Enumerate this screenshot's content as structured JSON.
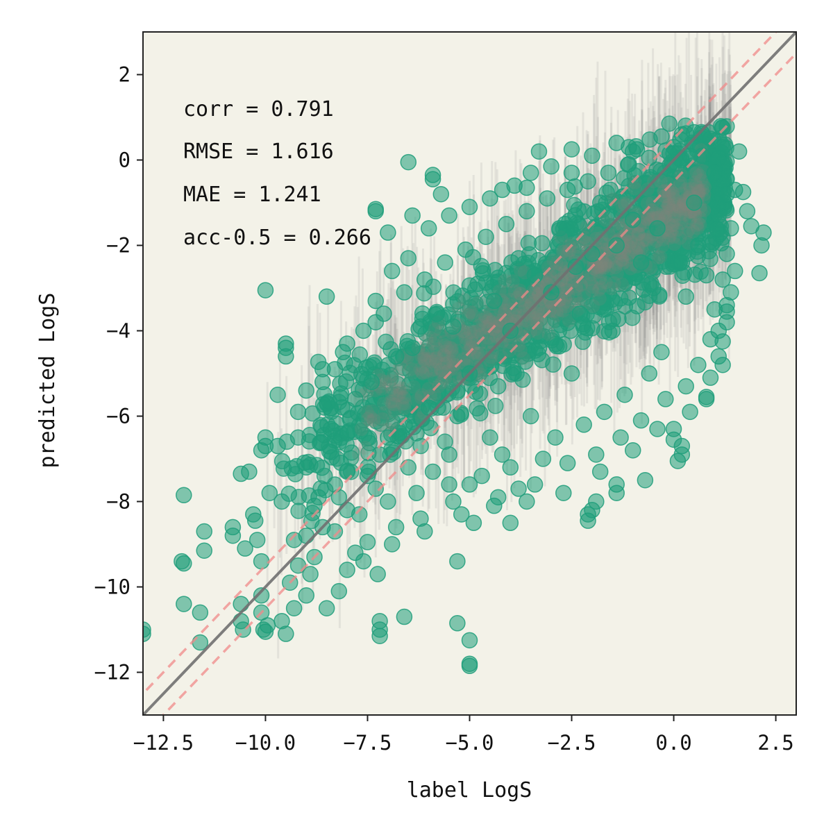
{
  "chart_data": {
    "type": "scatter",
    "title": "",
    "xlabel": "label LogS",
    "ylabel": "predicted LogS",
    "xlim": [
      -13,
      3
    ],
    "ylim": [
      -13,
      3
    ],
    "x_ticks": [
      -12.5,
      -10.0,
      -7.5,
      -5.0,
      -2.5,
      0.0,
      2.5
    ],
    "x_tick_labels": [
      "−12.5",
      "−10.0",
      "−7.5",
      "−5.0",
      "−2.5",
      "0.0",
      "2.5"
    ],
    "y_ticks": [
      2,
      0,
      -2,
      -4,
      -6,
      -8,
      -10,
      -12
    ],
    "y_tick_labels": [
      "2",
      "0",
      "−2",
      "−4",
      "−6",
      "−8",
      "−10",
      "−12"
    ],
    "grid": false,
    "colors": {
      "points": "#1f9e7a",
      "error_bars": "#888888",
      "identity_line": "#707070",
      "tolerance_lines": "#f08a8a",
      "plot_background": "#f3f2e8"
    },
    "reference_lines": [
      {
        "kind": "identity",
        "slope": 1,
        "offset": 0,
        "style": "solid"
      },
      {
        "kind": "tolerance",
        "slope": 1,
        "offset": 0.5,
        "style": "dashed"
      },
      {
        "kind": "tolerance",
        "slope": 1,
        "offset": -0.5,
        "style": "dashed"
      }
    ],
    "stats": [
      "corr = 0.791",
      "RMSE = 1.616",
      "MAE = 1.241",
      "acc-0.5 = 0.266"
    ],
    "series": [
      {
        "points": [
          [
            -12.0,
            -7.85
          ],
          [
            -11.5,
            -8.7
          ],
          [
            -11.5,
            -9.15
          ],
          [
            -10.8,
            -8.6
          ],
          [
            -10.8,
            -8.8
          ],
          [
            -10.5,
            -9.1
          ],
          [
            -10.3,
            -8.3
          ],
          [
            -10.25,
            -8.45
          ],
          [
            -10.2,
            -8.9
          ],
          [
            -10.1,
            -9.4
          ],
          [
            -12.0,
            -9.45
          ],
          [
            -12.05,
            -9.4
          ],
          [
            -12.0,
            -10.4
          ],
          [
            -11.6,
            -10.6
          ],
          [
            -11.6,
            -11.3
          ],
          [
            -13.0,
            -11.0
          ],
          [
            -13.0,
            -11.1
          ],
          [
            -10.6,
            -10.4
          ],
          [
            -10.6,
            -10.8
          ],
          [
            -10.55,
            -11.0
          ],
          [
            -10.1,
            -10.2
          ],
          [
            -10.1,
            -10.6
          ],
          [
            -10.05,
            -11.0
          ],
          [
            -10.0,
            -11.05
          ],
          [
            -9.95,
            -10.9
          ],
          [
            -9.5,
            -11.1
          ],
          [
            -9.6,
            -10.8
          ],
          [
            -9.3,
            -10.5
          ],
          [
            -9.0,
            -10.2
          ],
          [
            -8.5,
            -10.5
          ],
          [
            -7.2,
            -10.8
          ],
          [
            -7.2,
            -11.0
          ],
          [
            -7.2,
            -11.15
          ],
          [
            -6.6,
            -10.7
          ],
          [
            -5.3,
            -10.85
          ],
          [
            -5.0,
            -11.25
          ],
          [
            -5.0,
            -11.8
          ],
          [
            -5.0,
            -11.85
          ],
          [
            -5.3,
            -9.4
          ],
          [
            -4.0,
            -8.5
          ],
          [
            -4.9,
            -8.5
          ],
          [
            -7.25,
            -9.7
          ],
          [
            -6.2,
            -3.9
          ],
          [
            -8.5,
            -3.2
          ],
          [
            -6.5,
            -0.05
          ],
          [
            -5.9,
            -0.35
          ],
          [
            -5.9,
            -0.45
          ],
          [
            -5.7,
            -0.8
          ],
          [
            -7.3,
            -1.2
          ],
          [
            -7.3,
            -1.15
          ],
          [
            -7.0,
            -1.7
          ],
          [
            -10.0,
            -3.05
          ],
          [
            -9.5,
            -4.3
          ],
          [
            -9.5,
            -4.4
          ],
          [
            -9.5,
            -4.6
          ],
          [
            -9.7,
            -5.5
          ],
          [
            -10.0,
            -6.5
          ],
          [
            -10.0,
            -6.7
          ],
          [
            -10.1,
            -6.8
          ],
          [
            -10.6,
            -7.35
          ],
          [
            -10.4,
            -7.3
          ],
          [
            -9.7,
            -6.7
          ],
          [
            -9.9,
            -7.8
          ],
          [
            -9.6,
            -8.0
          ],
          [
            -9.2,
            -9.5
          ],
          [
            -3.3,
            0.2
          ],
          [
            -2.5,
            0.25
          ],
          [
            -1.4,
            0.4
          ],
          [
            -1.1,
            0.3
          ],
          [
            -0.9,
            0.25
          ],
          [
            -0.3,
            0.55
          ],
          [
            0.2,
            0.6
          ],
          [
            0.5,
            0.65
          ],
          [
            0.9,
            0.5
          ],
          [
            1.2,
            0.3
          ],
          [
            1.6,
            0.2
          ],
          [
            1.1,
            0.05
          ],
          [
            -4.2,
            -0.7
          ],
          [
            -3.6,
            -0.65
          ],
          [
            -2.5,
            -0.3
          ],
          [
            1.5,
            -0.7
          ],
          [
            1.7,
            -0.75
          ],
          [
            1.8,
            -1.2
          ],
          [
            1.9,
            -1.55
          ],
          [
            2.2,
            -1.7
          ],
          [
            2.15,
            -2.0
          ],
          [
            2.1,
            -2.65
          ],
          [
            1.5,
            -2.6
          ],
          [
            1.4,
            -3.1
          ],
          [
            1.3,
            -3.4
          ],
          [
            1.3,
            -3.55
          ],
          [
            1.3,
            -3.8
          ],
          [
            1.2,
            -4.25
          ],
          [
            1.1,
            -4.6
          ],
          [
            1.2,
            -4.8
          ],
          [
            0.8,
            -5.55
          ],
          [
            0.8,
            -5.6
          ],
          [
            0.0,
            -6.3
          ],
          [
            0.0,
            -6.55
          ],
          [
            0.2,
            -6.7
          ],
          [
            0.2,
            -6.9
          ],
          [
            0.1,
            -7.05
          ],
          [
            -0.7,
            -7.5
          ],
          [
            -1.4,
            -7.6
          ],
          [
            -1.4,
            -7.8
          ],
          [
            -1.9,
            -8.0
          ],
          [
            -2.0,
            -8.2
          ],
          [
            -2.1,
            -8.45
          ],
          [
            -2.1,
            -8.3
          ],
          [
            -3.4,
            -7.6
          ],
          [
            -3.8,
            -7.7
          ],
          [
            -4.3,
            -7.9
          ],
          [
            -5.0,
            -7.6
          ],
          [
            -5.4,
            -8.0
          ],
          [
            -6.2,
            -8.4
          ],
          [
            -6.8,
            -8.6
          ],
          [
            -7.5,
            -8.95
          ],
          [
            -8.0,
            -9.6
          ],
          [
            -7.8,
            -9.2
          ],
          [
            -8.8,
            -9.3
          ],
          [
            -9.4,
            -9.9
          ],
          [
            -9.0,
            -8.8
          ],
          [
            -8.6,
            -8.6
          ],
          [
            -8.0,
            -8.2
          ],
          [
            -7.5,
            -7.4
          ],
          [
            -8.6,
            -5.2
          ],
          [
            -8.3,
            -4.9
          ],
          [
            -8.0,
            -4.3
          ],
          [
            -7.3,
            -3.8
          ],
          [
            -7.3,
            -3.3
          ],
          [
            -6.9,
            -2.6
          ],
          [
            -6.5,
            -2.3
          ],
          [
            -6.4,
            -1.3
          ],
          [
            -6.0,
            -1.6
          ],
          [
            -5.5,
            -1.3
          ],
          [
            -5.0,
            -1.1
          ],
          [
            -4.5,
            -0.9
          ],
          [
            -3.9,
            -0.6
          ],
          [
            -3.5,
            -0.3
          ],
          [
            -3.0,
            -0.15
          ],
          [
            -2.0,
            0.1
          ],
          [
            -1.0,
            0.2
          ],
          [
            0.0,
            0.3
          ],
          [
            0.7,
            0.1
          ],
          [
            1.0,
            -0.3
          ],
          [
            1.3,
            -0.8
          ],
          [
            1.4,
            -1.6
          ],
          [
            1.3,
            -2.2
          ],
          [
            1.2,
            -2.8
          ],
          [
            1.0,
            -3.5
          ],
          [
            0.9,
            -4.2
          ],
          [
            0.6,
            -4.8
          ],
          [
            0.3,
            -5.3
          ],
          [
            -0.2,
            -5.6
          ],
          [
            -0.8,
            -6.1
          ],
          [
            -1.3,
            -6.5
          ],
          [
            -1.9,
            -6.9
          ],
          [
            -2.6,
            -7.1
          ],
          [
            -3.2,
            -7.0
          ],
          [
            -4.0,
            -7.2
          ],
          [
            -4.7,
            -7.4
          ],
          [
            -5.5,
            -7.6
          ],
          [
            -6.3,
            -7.8
          ],
          [
            -7.0,
            -8.0
          ],
          [
            -7.7,
            -8.3
          ],
          [
            -8.3,
            -8.7
          ],
          [
            -8.7,
            -7.9
          ],
          [
            -9.0,
            -7.2
          ],
          [
            -9.2,
            -6.5
          ],
          [
            -9.2,
            -5.9
          ],
          [
            -9.0,
            -5.4
          ],
          [
            -8.6,
            -4.9
          ],
          [
            -8.1,
            -4.5
          ],
          [
            -7.6,
            -4.0
          ],
          [
            -7.1,
            -3.6
          ],
          [
            -6.6,
            -3.1
          ],
          [
            -6.1,
            -2.8
          ],
          [
            -5.6,
            -2.4
          ],
          [
            -5.1,
            -2.1
          ],
          [
            -4.6,
            -1.8
          ],
          [
            -4.1,
            -1.5
          ],
          [
            -3.6,
            -1.2
          ],
          [
            -3.1,
            -0.9
          ],
          [
            -2.6,
            -0.7
          ],
          [
            -2.1,
            -0.5
          ],
          [
            -1.6,
            -0.3
          ],
          [
            -1.1,
            -0.1
          ],
          [
            -0.6,
            0.05
          ],
          [
            -0.1,
            0.15
          ],
          [
            0.4,
            0.1
          ],
          [
            -2.0,
            -2.2
          ],
          [
            -3.0,
            -3.1
          ],
          [
            -4.0,
            -4.0
          ],
          [
            -5.0,
            -5.0
          ],
          [
            -6.0,
            -5.8
          ],
          [
            -7.0,
            -6.5
          ],
          [
            -8.0,
            -7.3
          ],
          [
            -1.0,
            -1.4
          ],
          [
            -1.5,
            -4.0
          ],
          [
            -2.5,
            -5.0
          ],
          [
            -3.5,
            -6.0
          ],
          [
            -4.5,
            -6.5
          ],
          [
            -5.5,
            -6.9
          ],
          [
            -6.5,
            -7.2
          ],
          [
            -0.5,
            -3.0
          ],
          [
            -0.3,
            -4.5
          ],
          [
            -1.2,
            -5.5
          ],
          [
            -2.2,
            -6.2
          ],
          [
            -6.8,
            -4.6
          ],
          [
            -7.8,
            -5.6
          ],
          [
            -5.8,
            -3.6
          ],
          [
            -4.8,
            -2.9
          ],
          [
            -3.8,
            -2.3
          ],
          [
            -2.8,
            -1.6
          ],
          [
            -1.8,
            -1.0
          ],
          [
            -8.4,
            -6.3
          ],
          [
            -7.4,
            -5.2
          ],
          [
            -6.4,
            -4.4
          ],
          [
            -5.4,
            -3.9
          ],
          [
            -4.4,
            -3.3
          ],
          [
            -3.4,
            -2.7
          ],
          [
            -2.4,
            -2.5
          ],
          [
            -1.4,
            -2.0
          ],
          [
            -0.4,
            -1.6
          ],
          [
            0.5,
            -1.0
          ],
          [
            0.6,
            -2.0
          ],
          [
            0.3,
            -3.2
          ],
          [
            -0.6,
            -5.0
          ],
          [
            -1.7,
            -5.9
          ],
          [
            -2.9,
            -6.5
          ],
          [
            -4.2,
            -6.9
          ],
          [
            -5.9,
            -7.3
          ],
          [
            -7.3,
            -7.7
          ],
          [
            -8.8,
            -8.1
          ],
          [
            -9.3,
            -8.9
          ],
          [
            -8.9,
            -9.7
          ],
          [
            -8.2,
            -10.1
          ],
          [
            -7.6,
            -9.4
          ],
          [
            -6.9,
            -9.0
          ],
          [
            -6.1,
            -8.7
          ],
          [
            -5.2,
            -8.3
          ],
          [
            -4.4,
            -8.1
          ],
          [
            -3.6,
            -8.0
          ],
          [
            -2.7,
            -7.8
          ],
          [
            -1.8,
            -7.3
          ],
          [
            -1.0,
            -6.8
          ],
          [
            -0.4,
            -6.3
          ],
          [
            0.4,
            -5.9
          ],
          [
            0.9,
            -5.1
          ],
          [
            1.1,
            -4.0
          ],
          [
            0.8,
            -2.7
          ],
          [
            0.2,
            -2.4
          ],
          [
            -0.8,
            -2.4
          ],
          [
            -2.3,
            -3.6
          ],
          [
            -3.3,
            -4.4
          ],
          [
            -4.3,
            -5.3
          ],
          [
            -5.3,
            -6.0
          ],
          [
            -6.3,
            -6.4
          ],
          [
            -7.2,
            -6.9
          ],
          [
            -8.2,
            -7.9
          ]
        ]
      }
    ]
  }
}
